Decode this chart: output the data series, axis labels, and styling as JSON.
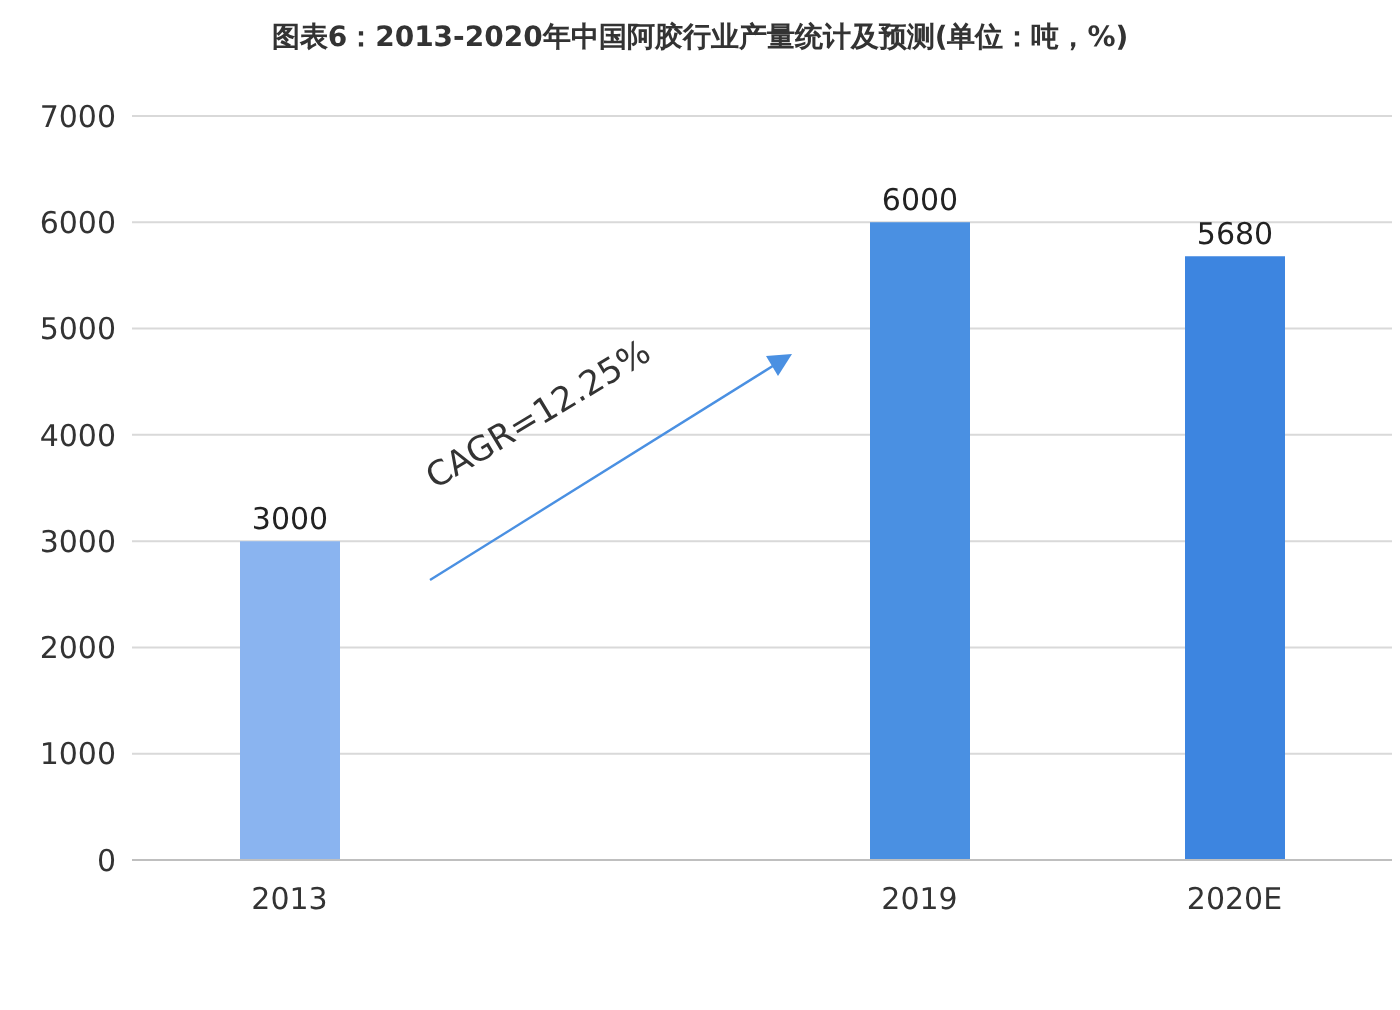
{
  "chart_data": {
    "type": "bar",
    "title": "图表6：2013-2020年中国阿胶行业产量统计及预测(单位：吨，%)",
    "categories": [
      "2013",
      null,
      "2019",
      "2020E"
    ],
    "values": [
      3000,
      null,
      6000,
      5680
    ],
    "colors": [
      "#8ab4f0",
      "#4a90e2",
      "#4a90e2",
      "#3d85e0"
    ],
    "ylim": [
      0,
      7000
    ],
    "yticks": [
      0,
      1000,
      2000,
      3000,
      4000,
      5000,
      6000,
      7000
    ],
    "grid": "y",
    "data_labels": true,
    "annotations": [
      "CAGR=12.25%"
    ]
  }
}
